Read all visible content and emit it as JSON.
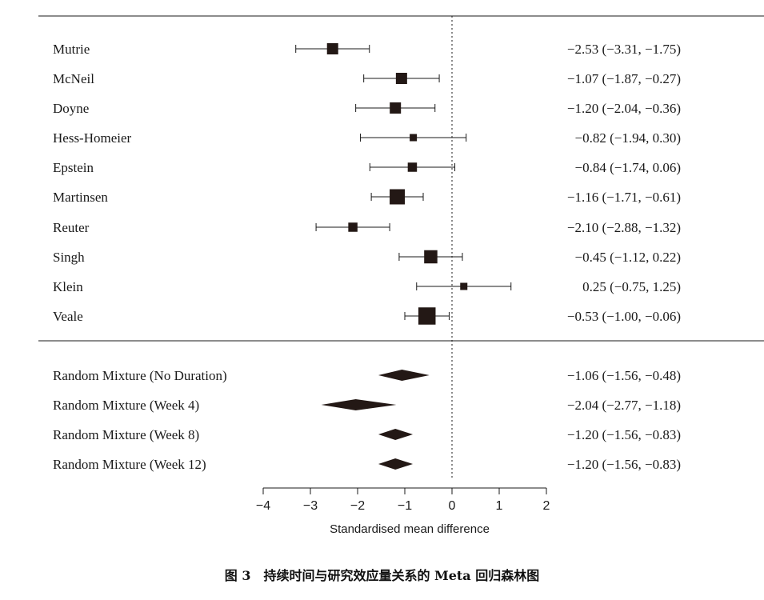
{
  "chart_data": {
    "type": "forest",
    "xlabel": "Standardised mean difference",
    "xlim": [
      -4,
      2
    ],
    "x_ticks": [
      "−4",
      "−3",
      "−2",
      "−1",
      "0",
      "1",
      "2"
    ],
    "reference_line": 0,
    "studies": [
      {
        "label": "Mutrie",
        "effect": -2.53,
        "lower": -3.31,
        "upper": -1.75,
        "text": "−2.53 (−3.31, −1.75)",
        "weight": 2
      },
      {
        "label": "McNeil",
        "effect": -1.07,
        "lower": -1.87,
        "upper": -0.27,
        "text": "−1.07 (−1.87, −0.27)",
        "weight": 2
      },
      {
        "label": "Doyne",
        "effect": -1.2,
        "lower": -2.04,
        "upper": -0.36,
        "text": "−1.20 (−2.04, −0.36)",
        "weight": 2
      },
      {
        "label": "Hess-Homeier",
        "effect": -0.82,
        "lower": -1.94,
        "upper": 0.3,
        "text": "−0.82 (−1.94,  0.30)",
        "weight": 1
      },
      {
        "label": "Epstein",
        "effect": -0.84,
        "lower": -1.74,
        "upper": 0.06,
        "text": "−0.84 (−1.74,  0.06)",
        "weight": 1.5
      },
      {
        "label": "Martinsen",
        "effect": -1.16,
        "lower": -1.71,
        "upper": -0.61,
        "text": "−1.16 (−1.71, −0.61)",
        "weight": 3
      },
      {
        "label": "Reuter",
        "effect": -2.1,
        "lower": -2.88,
        "upper": -1.32,
        "text": "−2.10 (−2.88, −1.32)",
        "weight": 1.5
      },
      {
        "label": "Singh",
        "effect": -0.45,
        "lower": -1.12,
        "upper": 0.22,
        "text": "−0.45 (−1.12,  0.22)",
        "weight": 2.5
      },
      {
        "label": " Klein",
        "effect": 0.25,
        "lower": -0.75,
        "upper": 1.25,
        "text": " 0.25 (−0.75,  1.25)",
        "weight": 1
      },
      {
        "label": "Veale",
        "effect": -0.53,
        "lower": -1.0,
        "upper": -0.06,
        "text": "−0.53 (−1.00, −0.06)",
        "weight": 3.5
      }
    ],
    "summaries": [
      {
        "label": "Random Mixture (No Duration)",
        "effect": -1.06,
        "lower": -1.56,
        "upper": -0.48,
        "text": "−1.06 (−1.56, −0.48)"
      },
      {
        "label": "Random Mixture (Week 4)",
        "effect": -2.04,
        "lower": -2.77,
        "upper": -1.18,
        "text": "−2.04 (−2.77, −1.18)"
      },
      {
        "label": "Random Mixture (Week 8)",
        "effect": -1.2,
        "lower": -1.56,
        "upper": -0.83,
        "text": "−1.20 (−1.56, −0.83)"
      },
      {
        "label": "Random Mixture (Week 12)",
        "effect": -1.2,
        "lower": -1.56,
        "upper": -0.83,
        "text": "−1.20 (−1.56, −0.83)"
      }
    ]
  },
  "caption": "图 3　持续时间与研究效应量关系的 Meta 回归森林图",
  "colors": {
    "ink": "#1a1a1a",
    "marker": "#231815"
  }
}
